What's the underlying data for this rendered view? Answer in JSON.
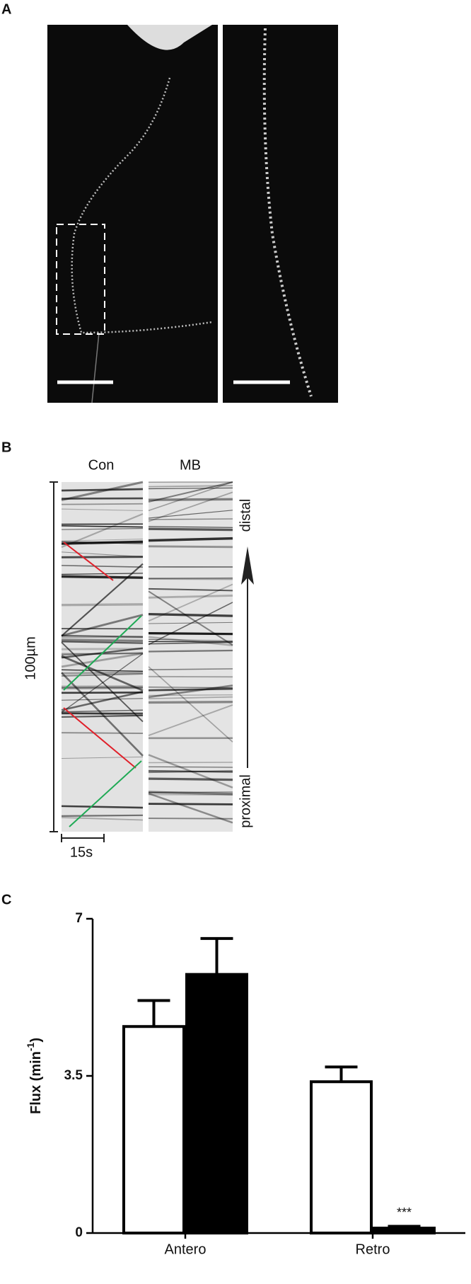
{
  "panels": {
    "a": {
      "label": "A"
    },
    "b": {
      "label": "B",
      "kymographs": [
        "Con",
        "MB"
      ],
      "length_scale": "100µm",
      "time_scale": "15s",
      "direction_top": "distal",
      "direction_bottom": "proximal"
    }
  },
  "chart_data": {
    "type": "bar",
    "panel_label": "C",
    "ylabel": "Flux (min",
    "ylabel_superscript": "-1",
    "ylabel_end": ")",
    "categories": [
      "Antero",
      "Retro"
    ],
    "series": [
      {
        "color": "#ffffff",
        "values": [
          4.6,
          3.37
        ],
        "errors": [
          0.58,
          0.33
        ]
      },
      {
        "color": "#000000",
        "values": [
          5.76,
          0.11
        ],
        "errors": [
          0.8,
          0.04
        ]
      }
    ],
    "annotations": [
      {
        "category": 1,
        "series": 1,
        "text": "***"
      }
    ],
    "ylim": [
      0,
      7
    ],
    "yticks": [
      0,
      3.5,
      7
    ]
  }
}
